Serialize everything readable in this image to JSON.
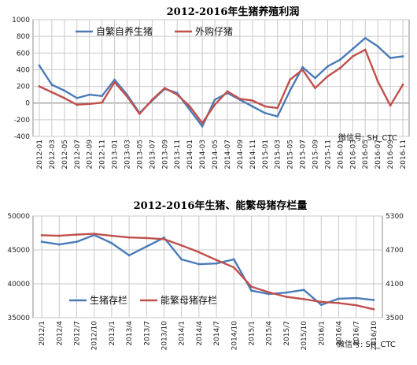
{
  "watermark": "微信号: SH_CTC",
  "chart_data": [
    {
      "type": "line",
      "title": "2012-2016年生猪养殖利润",
      "xlabel": "",
      "ylabel": "",
      "ylim": [
        -400,
        1000
      ],
      "yticks": [
        -400,
        -200,
        0,
        200,
        400,
        600,
        800,
        1000
      ],
      "grid": true,
      "legend": "top-left",
      "categories": [
        "2012-01",
        "2012-03",
        "2012-05",
        "2012-07",
        "2012-09",
        "2012-11",
        "2013-01",
        "2013-03",
        "2013-05",
        "2013-07",
        "2013-09",
        "2013-11",
        "2014-01",
        "2014-03",
        "2014-05",
        "2014-07",
        "2014-09",
        "2014-11",
        "2015-01",
        "2015-03",
        "2015-05",
        "2015-07",
        "2015-09",
        "2015-11",
        "2016-01",
        "2016-03",
        "2016-05",
        "2016-07",
        "2016-09",
        "2016-11"
      ],
      "series": [
        {
          "name": "自繁自养生猪",
          "color": "#4a7bb7",
          "values": [
            450,
            220,
            150,
            60,
            100,
            85,
            280,
            100,
            -120,
            30,
            170,
            120,
            -80,
            -280,
            40,
            120,
            40,
            -40,
            -120,
            -160,
            150,
            430,
            300,
            440,
            520,
            650,
            780,
            680,
            540,
            560
          ]
        },
        {
          "name": "外购仔猪",
          "color": "#c0504d",
          "values": [
            200,
            130,
            60,
            -20,
            -10,
            5,
            250,
            80,
            -130,
            40,
            180,
            100,
            -40,
            -240,
            -20,
            140,
            50,
            30,
            -40,
            -60,
            280,
            400,
            180,
            320,
            420,
            560,
            640,
            260,
            -30,
            220
          ]
        }
      ]
    },
    {
      "type": "line",
      "title": "2012-2016年生猪、能繁母猪存栏量",
      "xlabel": "",
      "ylabel": "",
      "ylim": [
        35000,
        50000
      ],
      "yticks": [
        35000,
        40000,
        45000,
        50000
      ],
      "y2lim": [
        3500,
        5300
      ],
      "y2ticks": [
        3500,
        4100,
        4700,
        5300
      ],
      "grid": true,
      "legend": "bottom",
      "categories": [
        "2012/1",
        "2012/4",
        "2012/7",
        "2012/10",
        "2013/1",
        "2013/4",
        "2013/7",
        "2013/10",
        "2014/1",
        "2014/4",
        "2014/7",
        "2014/10",
        "2015/1",
        "2015/4",
        "2015/7",
        "2015/10",
        "2016/1",
        "2016/4",
        "2016/7",
        "2016/10"
      ],
      "series": [
        {
          "name": "生猪存栏",
          "axis": "left",
          "color": "#4a7bb7",
          "values": [
            46200,
            45800,
            46200,
            47200,
            46000,
            44200,
            45500,
            46800,
            43600,
            42900,
            43000,
            43600,
            39000,
            38500,
            38700,
            39100,
            36900,
            37800,
            37900,
            37600
          ]
        },
        {
          "name": "能繁母猪存栏",
          "axis": "right",
          "color": "#c0504d",
          "values": [
            4960,
            4950,
            4970,
            4985,
            4950,
            4920,
            4910,
            4890,
            4780,
            4660,
            4520,
            4390,
            4050,
            3950,
            3870,
            3830,
            3780,
            3760,
            3720,
            3650
          ]
        }
      ]
    }
  ]
}
